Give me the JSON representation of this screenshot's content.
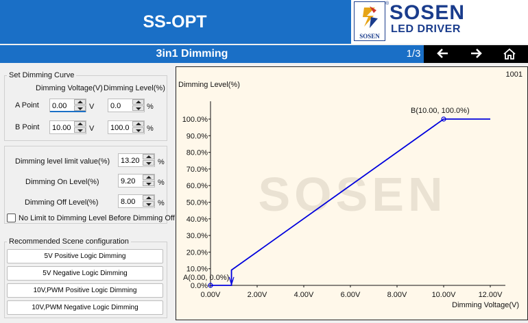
{
  "app": {
    "title": "SS-OPT",
    "brand_name": "SOSEN",
    "brand_reg": "®",
    "brand_sub": "LED DRIVER",
    "brand_mark_text": "SOSEN"
  },
  "subbar": {
    "page_title": "3in1 Dimming",
    "page_num": "1/3"
  },
  "nav": {
    "prev": "left-arrow-icon",
    "next": "right-arrow-icon",
    "home": "home-icon"
  },
  "curve": {
    "group_label": "Set Dimming Curve",
    "col_voltage": "Dimming Voltage(V)",
    "col_level": "Dimming Level(%)",
    "a_label": "A Point",
    "b_label": "B Point",
    "a_voltage": "0.00",
    "a_level": "0.0",
    "b_voltage": "10.00",
    "b_level": "100.0",
    "unit_v": "V",
    "unit_pct": "%"
  },
  "limits": {
    "limit_label": "Dimming level limit value(%)",
    "limit_value": "13.20",
    "on_label": "Dimming On Level(%)",
    "on_value": "9.20",
    "off_label": "Dimming Off Level(%)",
    "off_value": "8.00",
    "unit_pct": "%",
    "no_limit_label": "No Limit to Dimming Level Before Dimming Off",
    "no_limit_checked": false
  },
  "scenes": {
    "group_label": "Recommended Scene configuration",
    "buttons": [
      "5V Positive Logic Dimming",
      "5V Negative Logic Dimming",
      "10V,PWM Positive Logic Dimming",
      "10V,PWM Negative Logic Dimming"
    ]
  },
  "chart": {
    "id_label": "1001",
    "watermark": "SOSEN"
  },
  "colors": {
    "header_blue": "#1a6fc6",
    "brand_navy": "#1a3c8c",
    "curve_blue": "#0000dd",
    "chart_bg": "#fff8ea"
  },
  "chart_data": {
    "type": "line",
    "ylabel": "Dimming Level(%)",
    "xlabel": "Dimming Voltage(V)",
    "xlim": [
      0,
      12
    ],
    "ylim": [
      0,
      100
    ],
    "x_ticks": [
      0,
      2,
      4,
      6,
      8,
      10,
      12
    ],
    "x_tick_labels": [
      "0.00V",
      "2.00V",
      "4.00V",
      "6.00V",
      "8.00V",
      "10.00V",
      "12.00V"
    ],
    "y_ticks": [
      0,
      10,
      20,
      30,
      40,
      50,
      60,
      70,
      80,
      90,
      100
    ],
    "y_tick_labels": [
      "0.0%",
      "10.0%",
      "20.0%",
      "30.0%",
      "40.0%",
      "50.0%",
      "60.0%",
      "70.0%",
      "80.0%",
      "90.0%",
      "100.0%"
    ],
    "series": [
      {
        "x": [
          0,
          0.9,
          0.9,
          10,
          12
        ],
        "y": [
          0,
          0,
          9.2,
          100,
          100
        ]
      }
    ],
    "points": [
      {
        "label": "A(0.00, 0.0%)",
        "x": 0,
        "y": 0
      },
      {
        "label": "B(10.00, 100.0%)",
        "x": 10,
        "y": 100
      }
    ],
    "grid": false
  }
}
